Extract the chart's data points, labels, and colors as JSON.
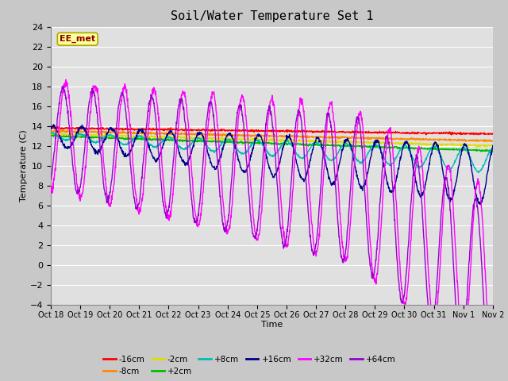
{
  "title": "Soil/Water Temperature Set 1",
  "xlabel": "Time",
  "ylabel": "Temperature (C)",
  "ylim": [
    -4,
    24
  ],
  "yticks": [
    -4,
    -2,
    0,
    2,
    4,
    6,
    8,
    10,
    12,
    14,
    16,
    18,
    20,
    22,
    24
  ],
  "x_labels": [
    "Oct 18",
    "Oct 19",
    "Oct 20",
    "Oct 21",
    "Oct 22",
    "Oct 23",
    "Oct 24",
    "Oct 25",
    "Oct 26",
    "Oct 27",
    "Oct 28",
    "Oct 29",
    "Oct 30",
    "Oct 31",
    "Nov 1",
    "Nov 2"
  ],
  "bg_color": "#e0e0e0",
  "grid_color": "#ffffff",
  "fig_bg_color": "#c8c8c8",
  "annotation_text": "EE_met",
  "annotation_color": "#8b0000",
  "annotation_bg": "#ffff99",
  "series_colors": {
    "-16cm": "#ff0000",
    "-8cm": "#ff8800",
    "-2cm": "#dddd00",
    "+2cm": "#00bb00",
    "+8cm": "#00bbbb",
    "+16cm": "#00008b",
    "+32cm": "#ff00ff",
    "+64cm": "#9900cc"
  },
  "n_days": 15,
  "pts_per_day": 96
}
